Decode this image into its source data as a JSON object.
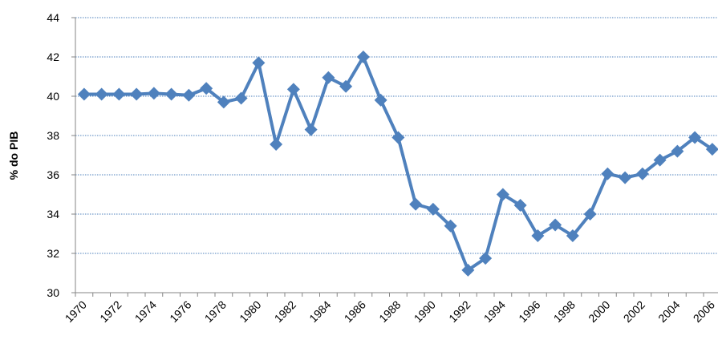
{
  "chart_data": {
    "type": "line",
    "y_label": "% do PIB",
    "categories": [
      "1970",
      null,
      "1972",
      null,
      "1974",
      null,
      "1976",
      null,
      "1978",
      null,
      "1980",
      null,
      "1982",
      null,
      "1984",
      null,
      "1986",
      null,
      "1988",
      null,
      "1990",
      null,
      "1992",
      null,
      "1994",
      null,
      "1996",
      null,
      "1998",
      null,
      "2000",
      null,
      "2002",
      null,
      "2004",
      null,
      "2006"
    ],
    "series": [
      {
        "color": "#4f81bd",
        "values": [
          40.1,
          40.1,
          40.1,
          40.1,
          40.15,
          40.1,
          40.05,
          40.4,
          39.7,
          39.9,
          41.7,
          37.55,
          40.35,
          38.3,
          40.95,
          40.5,
          42.0,
          39.8,
          37.9,
          34.5,
          34.25,
          33.4,
          31.15,
          31.75,
          35.0,
          34.45,
          32.9,
          33.45,
          32.9,
          34.0,
          36.05,
          35.85,
          36.05,
          36.75,
          37.2,
          37.9,
          37.3
        ]
      }
    ],
    "ylim": [
      30,
      44
    ],
    "yticks": [
      30,
      32,
      34,
      36,
      38,
      40,
      42,
      44
    ],
    "grid": true
  }
}
